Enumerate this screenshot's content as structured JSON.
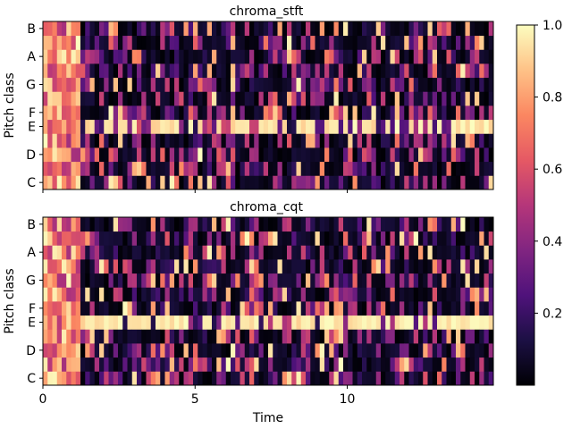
{
  "chart_data": [
    {
      "type": "heatmap",
      "title": "chroma_stft",
      "xlabel": "",
      "ylabel": "Pitch class",
      "y_ticks": [
        "C",
        "D",
        "E",
        "F",
        "G",
        "A",
        "B"
      ],
      "x_ticks": [],
      "xlim": [
        0,
        14.8
      ],
      "rows": 12,
      "columns": 96
    },
    {
      "type": "heatmap",
      "title": "chroma_cqt",
      "xlabel": "Time",
      "ylabel": "Pitch class",
      "y_ticks": [
        "C",
        "D",
        "E",
        "F",
        "G",
        "A",
        "B"
      ],
      "x_ticks": [
        "0",
        "5",
        "10"
      ],
      "xlim": [
        0,
        14.8
      ],
      "rows": 12,
      "columns": 96
    }
  ],
  "colorbar": {
    "colormap": "magma",
    "range": [
      0,
      1.0
    ],
    "ticks": [
      "0.2",
      "0.4",
      "0.6",
      "0.8",
      "1.0"
    ],
    "tick_values": [
      0.2,
      0.4,
      0.6,
      0.8,
      1.0
    ]
  },
  "colormap_stops": [
    "#000004",
    "#1c1044",
    "#4f127b",
    "#812581",
    "#b5367a",
    "#e55964",
    "#fb8761",
    "#fec287",
    "#fcfdbf"
  ]
}
